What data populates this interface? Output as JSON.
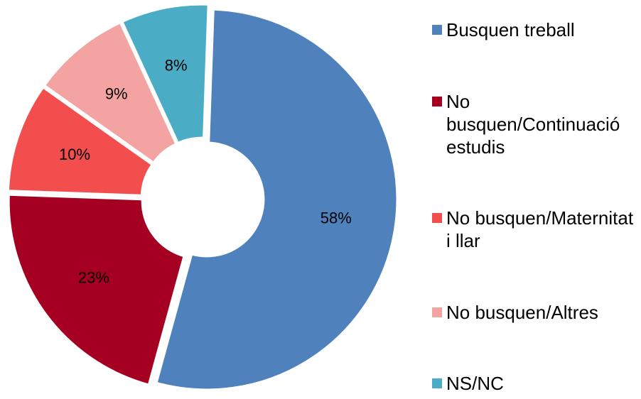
{
  "chart_data": {
    "type": "pie",
    "categories": [
      "Busquen treball",
      "No busquen/Continuació estudis",
      "No busquen/Maternitat i llar",
      "No busquen/Altres",
      "NS/NC"
    ],
    "values": [
      58,
      23,
      10,
      9,
      8
    ],
    "value_labels": [
      "58%",
      "23%",
      "10%",
      "9%",
      "8%"
    ],
    "colors": [
      "#4f81bd",
      "#a50021",
      "#f24e4e",
      "#f4a3a3",
      "#4bacc6"
    ],
    "legend": "right"
  }
}
